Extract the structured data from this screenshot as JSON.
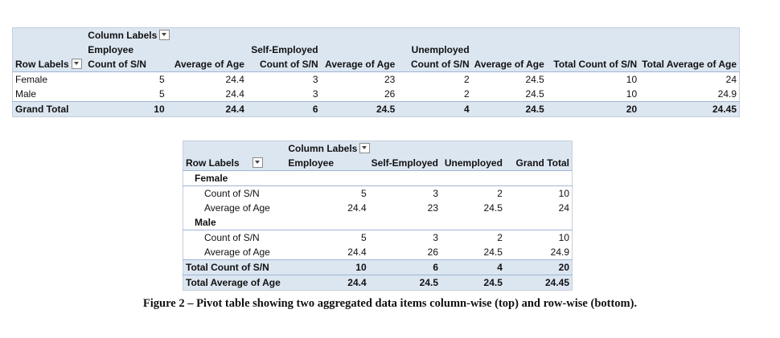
{
  "top": {
    "column_labels": "Column Labels",
    "groups": [
      "Employee",
      "Self-Employed",
      "Unemployed"
    ],
    "row_labels_header": "Row Labels",
    "measure_headers": [
      "Count of S/N",
      "Average of Age",
      "Count of S/N",
      "Average of Age",
      "Count of S/N",
      "Average of Age",
      "Total Count of S/N",
      "Total Average of Age"
    ],
    "rows": [
      {
        "label": "Female",
        "values": [
          "5",
          "24.4",
          "3",
          "23",
          "2",
          "24.5",
          "10",
          "24"
        ]
      },
      {
        "label": "Male",
        "values": [
          "5",
          "24.4",
          "3",
          "26",
          "2",
          "24.5",
          "10",
          "24.9"
        ]
      }
    ],
    "grand_total": {
      "label": "Grand Total",
      "values": [
        "10",
        "24.4",
        "6",
        "24.5",
        "4",
        "24.5",
        "20",
        "24.45"
      ]
    }
  },
  "bottom": {
    "column_labels": "Column Labels",
    "row_labels_header": "Row Labels",
    "columns": [
      "Employee",
      "Self-Employed",
      "Unemployed",
      "Grand Total"
    ],
    "groups": [
      {
        "label": "Female",
        "rows": [
          {
            "label": "Count of S/N",
            "values": [
              "5",
              "3",
              "2",
              "10"
            ]
          },
          {
            "label": "Average of Age",
            "values": [
              "24.4",
              "23",
              "24.5",
              "24"
            ]
          }
        ]
      },
      {
        "label": "Male",
        "rows": [
          {
            "label": "Count of S/N",
            "values": [
              "5",
              "3",
              "2",
              "10"
            ]
          },
          {
            "label": "Average of Age",
            "values": [
              "24.4",
              "26",
              "24.5",
              "24.9"
            ]
          }
        ]
      }
    ],
    "totals": [
      {
        "label": "Total Count of S/N",
        "values": [
          "10",
          "6",
          "4",
          "20"
        ]
      },
      {
        "label": "Total Average of Age",
        "values": [
          "24.4",
          "24.5",
          "24.5",
          "24.45"
        ]
      }
    ]
  },
  "caption": "Figure 2 – Pivot table showing two aggregated data items column-wise (top) and row-wise (bottom)."
}
